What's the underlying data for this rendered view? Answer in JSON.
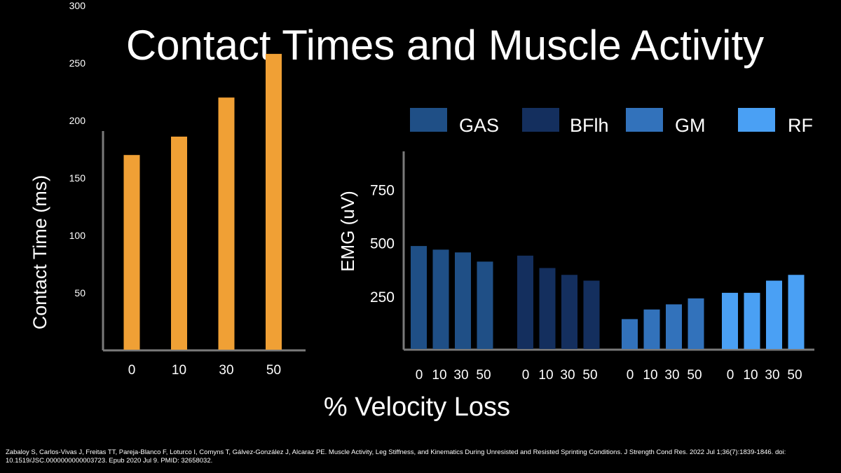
{
  "slide": {
    "title": "Contact Times and Muscle Activity",
    "shared_xlabel": "% Velocity Loss",
    "citation": "Zabaloy S, Carlos-Vivas J, Freitas TT, Pareja-Blanco F, Loturco I, Comyns T, Gálvez-González J, Alcaraz PE. Muscle Activity, Leg Stiffness, and Kinematics During Unresisted and Resisted Sprinting Conditions. J Strength Cond Res. 2022 Jul 1;36(7):1839-1846. doi: 10.1519/JSC.0000000000003723. Epub 2020 Jul 9. PMID: 32658032."
  },
  "chart_data": [
    {
      "type": "bar",
      "ylabel": "Contact Time (ms)",
      "categories": [
        "0",
        "10",
        "30",
        "50"
      ],
      "values": [
        170,
        186,
        220,
        258
      ],
      "yticks": [
        "50",
        "100",
        "150",
        "200",
        "250",
        "300"
      ],
      "ylim": [
        0,
        300
      ],
      "color": "#f0a035",
      "grid": false
    },
    {
      "type": "bar",
      "ylabel": "EMG (uV)",
      "categories": [
        "0",
        "10",
        "30",
        "50"
      ],
      "yticks": [
        "250",
        "500",
        "750"
      ],
      "ylim": [
        0,
        900
      ],
      "legend_position": "top",
      "grid": false,
      "series": [
        {
          "name": "GAS",
          "color": "#1f4f86",
          "values": [
            485,
            468,
            455,
            412
          ]
        },
        {
          "name": "BFlh",
          "color": "#142f5e",
          "values": [
            440,
            382,
            350,
            323
          ]
        },
        {
          "name": "GM",
          "color": "#3272bb",
          "values": [
            143,
            188,
            212,
            240
          ]
        },
        {
          "name": "RF",
          "color": "#4aa0f4",
          "values": [
            266,
            266,
            323,
            350
          ]
        }
      ]
    }
  ]
}
